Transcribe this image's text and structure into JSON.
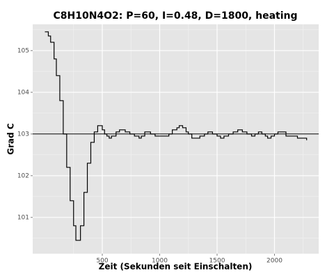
{
  "chart_data": {
    "type": "line",
    "step": true,
    "title": "C8H10N4O2: P=60, I=0.48, D=1800, heating",
    "x_label": "Zeit (Sekunden seit Einschalten)",
    "y_label": "Grad C",
    "x": [
      0,
      20,
      30,
      50,
      80,
      100,
      130,
      160,
      190,
      220,
      250,
      270,
      290,
      310,
      340,
      370,
      400,
      430,
      460,
      480,
      500,
      520,
      540,
      560,
      580,
      620,
      650,
      680,
      700,
      740,
      780,
      820,
      840,
      870,
      900,
      920,
      960,
      1040,
      1080,
      1110,
      1150,
      1170,
      1200,
      1230,
      1250,
      1280,
      1320,
      1350,
      1390,
      1420,
      1460,
      1500,
      1530,
      1560,
      1600,
      1640,
      1680,
      1720,
      1760,
      1800,
      1830,
      1860,
      1890,
      1920,
      1940,
      1970,
      2000,
      2030,
      2070,
      2100,
      2140,
      2200,
      2280
    ],
    "series": [
      {
        "color": "#000000",
        "values": [
          105.45,
          105.45,
          105.35,
          105.2,
          104.8,
          104.4,
          103.8,
          103.0,
          102.2,
          101.4,
          100.8,
          100.45,
          100.45,
          100.8,
          101.6,
          102.3,
          102.8,
          103.05,
          103.2,
          103.2,
          103.1,
          103.0,
          102.95,
          102.9,
          102.95,
          103.05,
          103.1,
          103.1,
          103.05,
          103.0,
          102.95,
          102.9,
          102.95,
          103.05,
          103.05,
          103.0,
          102.95,
          102.95,
          103.0,
          103.1,
          103.15,
          103.2,
          103.15,
          103.05,
          103.0,
          102.9,
          102.9,
          102.95,
          103.0,
          103.05,
          103.0,
          102.95,
          102.9,
          102.95,
          103.0,
          103.05,
          103.1,
          103.05,
          103.0,
          102.95,
          103.0,
          103.05,
          103.0,
          102.95,
          102.9,
          102.95,
          103.0,
          103.05,
          103.05,
          102.95,
          102.95,
          102.9,
          102.85
        ]
      }
    ],
    "hline": 103,
    "xlim": [
      -106,
      2385
    ],
    "ylim": [
      100.13,
      105.63
    ],
    "xticks": [
      500,
      1000,
      1500,
      2000
    ],
    "yticks": [
      101,
      102,
      103,
      104,
      105
    ],
    "grid": true
  }
}
